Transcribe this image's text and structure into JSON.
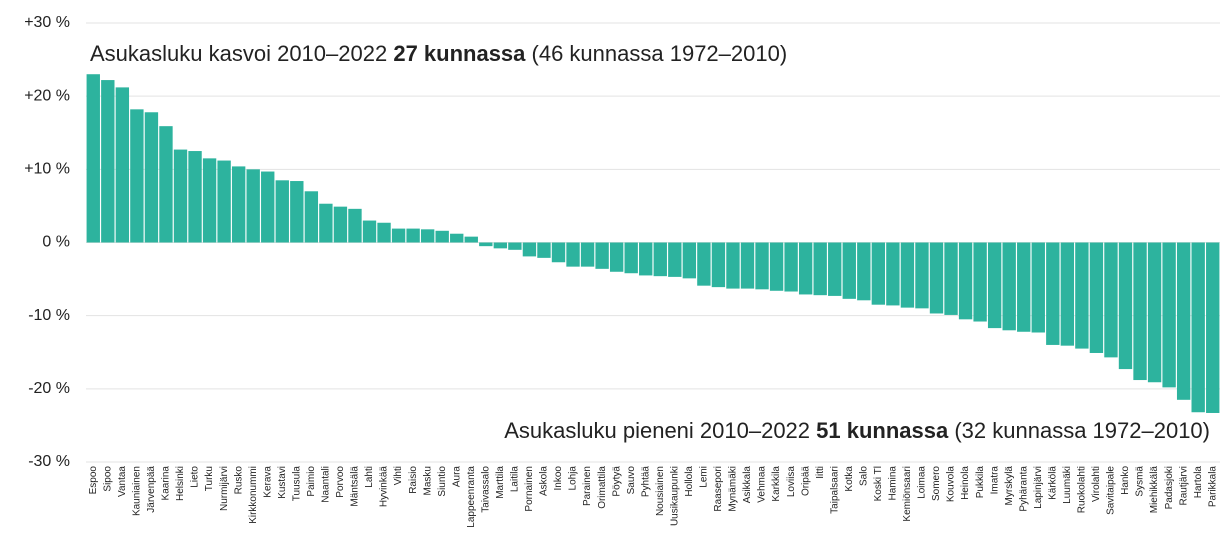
{
  "chart_data": {
    "type": "bar",
    "categories": [
      "Espoo",
      "Sipoo",
      "Vantaa",
      "Kauniainen",
      "Järvenpää",
      "Kaarina",
      "Helsinki",
      "Lieto",
      "Turku",
      "Nurmijärvi",
      "Rusko",
      "Kirkkonummi",
      "Kerava",
      "Kustavi",
      "Tuusula",
      "Paimio",
      "Naantali",
      "Porvoo",
      "Mäntsälä",
      "Lahti",
      "Hyvinkää",
      "Vihti",
      "Raisio",
      "Masku",
      "Siuntio",
      "Aura",
      "Lappeenranta",
      "Taivassalo",
      "Marttila",
      "Laitila",
      "Pornainen",
      "Askola",
      "Inkoo",
      "Lohja",
      "Parainen",
      "Orimattila",
      "Pöytyä",
      "Sauvo",
      "Pyhtää",
      "Nousiainen",
      "Uusikaupunki",
      "Hollola",
      "Lemi",
      "Raasepori",
      "Mynämäki",
      "Asikkala",
      "Vehmaa",
      "Karkkila",
      "Loviisa",
      "Oripää",
      "Iitti",
      "Taipalsaari",
      "Kotka",
      "Salo",
      "Koski Tl",
      "Hamina",
      "Kemiönsaari",
      "Loimaa",
      "Somero",
      "Kouvola",
      "Heinola",
      "Pukkila",
      "Imatra",
      "Myrskylä",
      "Pyhäranta",
      "Lapinjärvi",
      "Kärkölä",
      "Luumäki",
      "Ruokolahti",
      "Virolahti",
      "Savitaipale",
      "Hanko",
      "Sysmä",
      "Miehikkälä",
      "Padasjoki",
      "Rautjärvi",
      "Hartola",
      "Parikkala"
    ],
    "values": [
      23.0,
      22.2,
      21.2,
      18.2,
      17.8,
      15.9,
      12.7,
      12.5,
      11.5,
      11.2,
      10.4,
      10.0,
      9.7,
      8.5,
      8.4,
      7.0,
      5.3,
      4.9,
      4.6,
      3.0,
      2.7,
      1.9,
      1.9,
      1.8,
      1.6,
      1.2,
      0.8,
      -0.5,
      -0.8,
      -1.0,
      -1.9,
      -2.1,
      -2.7,
      -3.3,
      -3.3,
      -3.6,
      -4.0,
      -4.2,
      -4.5,
      -4.6,
      -4.7,
      -4.9,
      -5.9,
      -6.1,
      -6.3,
      -6.3,
      -6.4,
      -6.6,
      -6.7,
      -7.1,
      -7.2,
      -7.3,
      -7.7,
      -7.9,
      -8.5,
      -8.6,
      -8.9,
      -9.0,
      -9.7,
      -9.9,
      -10.5,
      -10.8,
      -11.7,
      -12.0,
      -12.2,
      -12.3,
      -14.0,
      -14.1,
      -14.5,
      -15.1,
      -15.7,
      -17.3,
      -18.8,
      -19.1,
      -19.8,
      -21.5,
      -23.2,
      -23.3
    ],
    "color": "#2db39e",
    "ylim": [
      -30,
      30
    ],
    "yticks": [
      {
        "value": -30,
        "label": "-30 %"
      },
      {
        "value": -20,
        "label": "-20 %"
      },
      {
        "value": -10,
        "label": "-10 %"
      },
      {
        "value": 0,
        "label": "0 %"
      },
      {
        "value": 10,
        "label": "+10 %"
      },
      {
        "value": 20,
        "label": "+20 %"
      },
      {
        "value": 30,
        "label": "+30 %"
      }
    ],
    "grid": true,
    "annotations": [
      [
        {
          "text": "Asukasluku kasvoi 2010–2022 ",
          "bold": false
        },
        {
          "text": "27 kunnassa",
          "bold": true
        },
        {
          "text": " (46 kunnassa 1972–2010)",
          "bold": false
        }
      ],
      [
        {
          "text": "Asukasluku pieneni 2010–2022 ",
          "bold": false
        },
        {
          "text": "51 kunnassa",
          "bold": true
        },
        {
          "text": " (32 kunnassa 1972–2010)",
          "bold": false
        }
      ]
    ]
  }
}
